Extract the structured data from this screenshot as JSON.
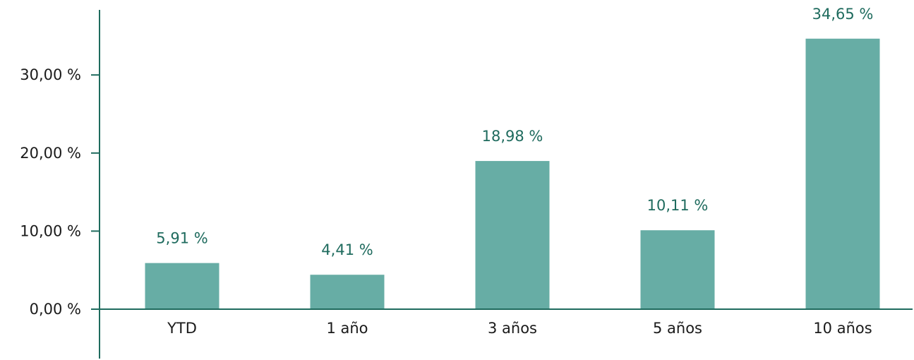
{
  "chart_data": {
    "type": "bar",
    "categories": [
      "YTD",
      "1 año",
      "3 años",
      "5 años",
      "10 años"
    ],
    "values": [
      5.91,
      4.41,
      18.98,
      10.11,
      34.65
    ],
    "value_labels": [
      "5,91 %",
      "4,41 %",
      "18,98 %",
      "10,11 %",
      "34,65 %"
    ],
    "y_ticks": [
      0,
      10,
      20,
      30
    ],
    "y_tick_labels": [
      "0,00 %",
      "10,00 %",
      "20,00 %",
      "30,00 %"
    ],
    "ylim": [
      0,
      35
    ],
    "grid": false,
    "colors": {
      "bar": "#67ada5",
      "axis": "#1f6b5e",
      "data_label": "#1f6b5e"
    }
  }
}
